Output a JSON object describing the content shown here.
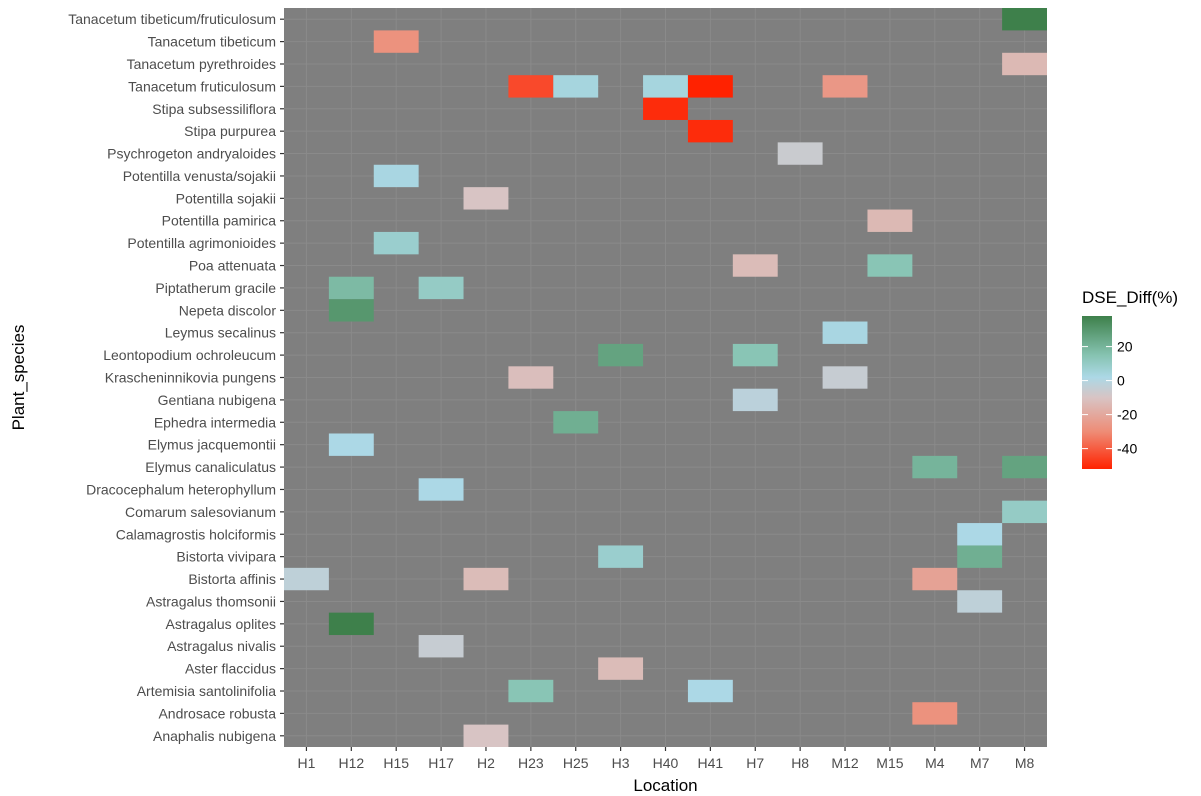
{
  "chart_data": {
    "type": "heatmap",
    "xlabel": "Location",
    "ylabel": "Plant_species",
    "x_categories": [
      "H1",
      "H12",
      "H15",
      "H17",
      "H2",
      "H23",
      "H25",
      "H3",
      "H40",
      "H41",
      "H7",
      "H8",
      "M12",
      "M15",
      "M4",
      "M7",
      "M8"
    ],
    "y_categories": [
      "Anaphalis nubigena",
      "Androsace robusta",
      "Artemisia santolinifolia",
      "Aster flaccidus",
      "Astragalus nivalis",
      "Astragalus oplites",
      "Astragalus thomsonii",
      "Bistorta affinis",
      "Bistorta vivipara",
      "Calamagrostis holciformis",
      "Comarum salesovianum",
      "Dracocephalum heterophyllum",
      "Elymus canaliculatus",
      "Elymus jacquemontii",
      "Ephedra intermedia",
      "Gentiana nubigena",
      "Krascheninnikovia pungens",
      "Leontopodium ochroleucum",
      "Leymus secalinus",
      "Nepeta discolor",
      "Piptatherum gracile",
      "Poa attenuata",
      "Potentilla agrimonioides",
      "Potentilla pamirica",
      "Potentilla sojakii",
      "Potentilla venusta/sojakii",
      "Psychrogeton andryaloides",
      "Stipa purpurea",
      "Stipa subsessiliflora",
      "Tanacetum fruticulosum",
      "Tanacetum pyrethroides",
      "Tanacetum tibeticum",
      "Tanacetum tibeticum/fruticulosum"
    ],
    "cells": [
      {
        "x": "H2",
        "y": "Anaphalis nubigena",
        "value": -10
      },
      {
        "x": "M4",
        "y": "Androsace robusta",
        "value": -28
      },
      {
        "x": "H23",
        "y": "Artemisia santolinifolia",
        "value": 14
      },
      {
        "x": "H41",
        "y": "Artemisia santolinifolia",
        "value": 2
      },
      {
        "x": "H3",
        "y": "Aster flaccidus",
        "value": -13
      },
      {
        "x": "H17",
        "y": "Astragalus nivalis",
        "value": -5
      },
      {
        "x": "H12",
        "y": "Astragalus oplites",
        "value": 38
      },
      {
        "x": "M7",
        "y": "Astragalus thomsonii",
        "value": -3
      },
      {
        "x": "H1",
        "y": "Bistorta affinis",
        "value": -3
      },
      {
        "x": "H2",
        "y": "Bistorta affinis",
        "value": -13
      },
      {
        "x": "M4",
        "y": "Bistorta affinis",
        "value": -22
      },
      {
        "x": "H3",
        "y": "Bistorta vivipara",
        "value": 8
      },
      {
        "x": "M7",
        "y": "Bistorta vivipara",
        "value": 22
      },
      {
        "x": "M7",
        "y": "Calamagrostis holciformis",
        "value": 2
      },
      {
        "x": "M8",
        "y": "Comarum salesovianum",
        "value": 10
      },
      {
        "x": "H17",
        "y": "Dracocephalum heterophyllum",
        "value": 2
      },
      {
        "x": "M4",
        "y": "Elymus canaliculatus",
        "value": 20
      },
      {
        "x": "M8",
        "y": "Elymus canaliculatus",
        "value": 26
      },
      {
        "x": "H12",
        "y": "Elymus jacquemontii",
        "value": 2
      },
      {
        "x": "H25",
        "y": "Ephedra intermedia",
        "value": 22
      },
      {
        "x": "H7",
        "y": "Gentiana nubigena",
        "value": -2
      },
      {
        "x": "H23",
        "y": "Krascheninnikovia pungens",
        "value": -12
      },
      {
        "x": "M12",
        "y": "Krascheninnikovia pungens",
        "value": -5
      },
      {
        "x": "H3",
        "y": "Leontopodium ochroleucum",
        "value": 26
      },
      {
        "x": "H7",
        "y": "Leontopodium ochroleucum",
        "value": 14
      },
      {
        "x": "M12",
        "y": "Leymus secalinus",
        "value": 3
      },
      {
        "x": "H12",
        "y": "Nepeta discolor",
        "value": 30
      },
      {
        "x": "H12",
        "y": "Piptatherum gracile",
        "value": 18
      },
      {
        "x": "H17",
        "y": "Piptatherum gracile",
        "value": 10
      },
      {
        "x": "H7",
        "y": "Poa attenuata",
        "value": -13
      },
      {
        "x": "M15",
        "y": "Poa attenuata",
        "value": 14
      },
      {
        "x": "H15",
        "y": "Potentilla agrimonioides",
        "value": 8
      },
      {
        "x": "M15",
        "y": "Potentilla pamirica",
        "value": -14
      },
      {
        "x": "H2",
        "y": "Potentilla sojakii",
        "value": -10
      },
      {
        "x": "H15",
        "y": "Potentilla venusta/sojakii",
        "value": 3
      },
      {
        "x": "H8",
        "y": "Psychrogeton andryaloides",
        "value": -6
      },
      {
        "x": "H41",
        "y": "Stipa purpurea",
        "value": -50
      },
      {
        "x": "H40",
        "y": "Stipa subsessiliflora",
        "value": -50
      },
      {
        "x": "H23",
        "y": "Tanacetum fruticulosum",
        "value": -44
      },
      {
        "x": "H25",
        "y": "Tanacetum fruticulosum",
        "value": 4
      },
      {
        "x": "H40",
        "y": "Tanacetum fruticulosum",
        "value": 4
      },
      {
        "x": "H41",
        "y": "Tanacetum fruticulosum",
        "value": -52
      },
      {
        "x": "M12",
        "y": "Tanacetum fruticulosum",
        "value": -26
      },
      {
        "x": "M8",
        "y": "Tanacetum pyrethroides",
        "value": -14
      },
      {
        "x": "H15",
        "y": "Tanacetum tibeticum",
        "value": -28
      },
      {
        "x": "M8",
        "y": "Tanacetum tibeticum/fruticulosum",
        "value": 38
      }
    ],
    "missing_color": "#7f7f7f",
    "color_scale": {
      "min": -52,
      "max": 38,
      "stops": [
        {
          "value": -52,
          "color": "#ff2200"
        },
        {
          "value": -30,
          "color": "#ee8c76"
        },
        {
          "value": -10,
          "color": "#d8c4c4"
        },
        {
          "value": 2,
          "color": "#acd8e6"
        },
        {
          "value": 15,
          "color": "#86c3b1"
        },
        {
          "value": 38,
          "color": "#3e804b"
        }
      ]
    },
    "legend": {
      "title": "DSE_Diff(%)",
      "position": "right",
      "ticks": [
        20,
        0,
        -20,
        -40
      ],
      "tick_labels": [
        "20",
        "0",
        "-20",
        "-40"
      ]
    }
  }
}
